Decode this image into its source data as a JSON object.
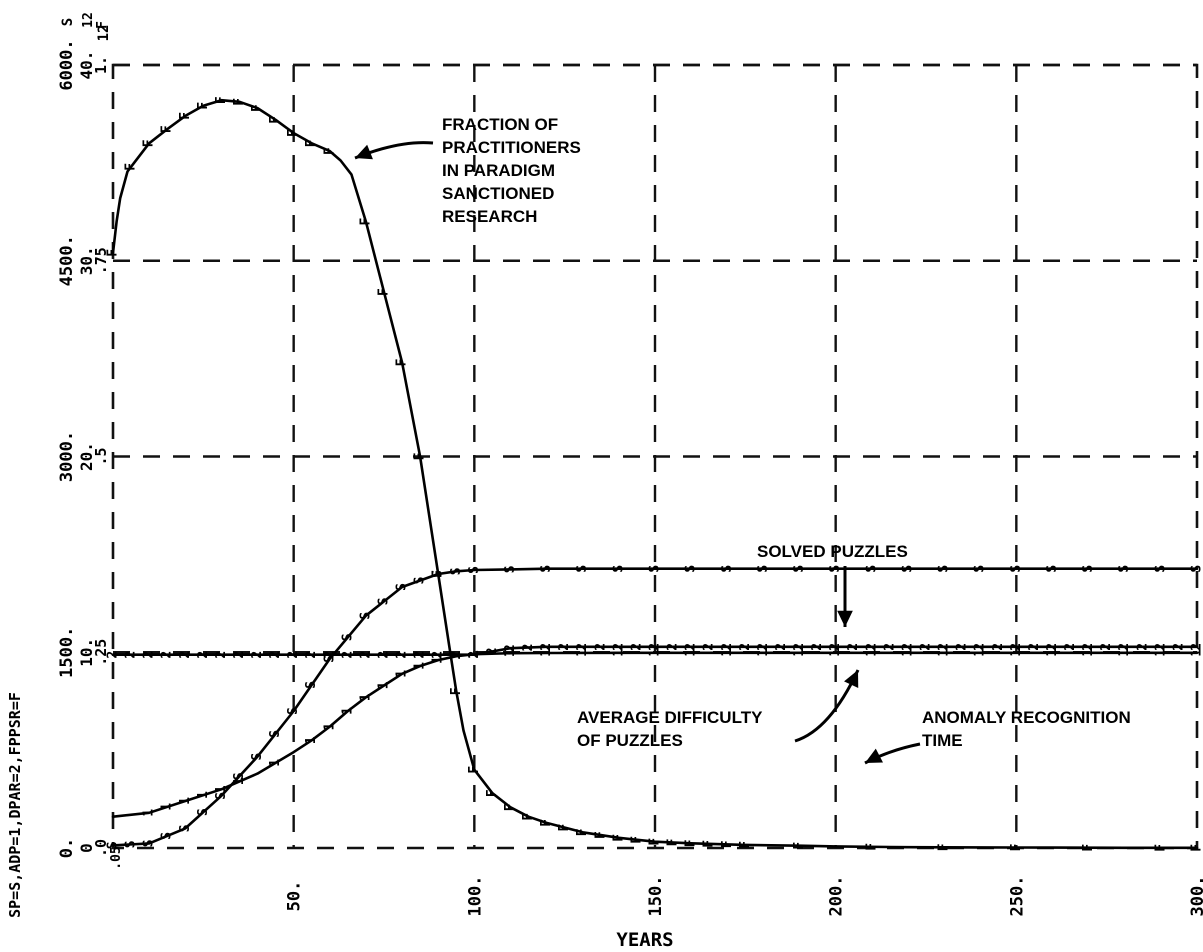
{
  "chart_data": {
    "type": "line",
    "xlabel": "YEARS",
    "legend_text": "SP=S,ADP=1,DPAR=2,FPPSR=F",
    "x_ticks": [
      "50.",
      "100.",
      "150.",
      "200.",
      "250.",
      "300."
    ],
    "x_range": [
      0,
      300
    ],
    "y_scales": [
      {
        "name": "SP",
        "ticks": [
          "0.",
          "1500.",
          "3000.",
          "4500.",
          "6000."
        ],
        "min": 0,
        "max": 6000
      },
      {
        "name": "ADP",
        "ticks": [
          "0",
          "10.",
          "20.",
          "30.",
          "40."
        ],
        "min": 0,
        "max": 40
      },
      {
        "name": "FPPSR",
        "ticks": [
          ".0",
          ".25",
          ".5",
          ".75",
          "1."
        ],
        "min": 0,
        "max": 1
      },
      {
        "name": "DPAR",
        "ticks": [
          ".05",
          "12"
        ],
        "min": 0.05,
        "max": 12
      }
    ],
    "axis_top_label": "S\n12\nF",
    "series": [
      {
        "name": "FPPSR",
        "symbol": "F",
        "x": [
          0,
          1,
          2,
          4,
          6,
          10,
          15,
          20,
          25,
          30,
          35,
          40,
          45,
          50,
          55,
          60,
          63,
          66,
          70,
          75,
          80,
          85,
          90,
          93,
          95,
          97,
          100,
          105,
          110,
          115,
          120,
          130,
          140,
          150,
          160,
          175,
          190,
          200,
          220,
          240,
          260,
          280,
          300
        ],
        "y": [
          0.76,
          0.8,
          0.83,
          0.864,
          0.876,
          0.9,
          0.918,
          0.935,
          0.948,
          0.955,
          0.953,
          0.945,
          0.93,
          0.913,
          0.9,
          0.89,
          0.878,
          0.86,
          0.8,
          0.71,
          0.62,
          0.5,
          0.35,
          0.26,
          0.2,
          0.15,
          0.1,
          0.07,
          0.052,
          0.04,
          0.032,
          0.02,
          0.013,
          0.008,
          0.006,
          0.004,
          0.003,
          0.002,
          0.001,
          0.0008,
          0.0005,
          0.0003,
          0.0002
        ],
        "markers_x": [
          0,
          5,
          10,
          15,
          20,
          25,
          30,
          35,
          40,
          45,
          50,
          55,
          60,
          70,
          75,
          80,
          85,
          90,
          95,
          100,
          105,
          110,
          115,
          120,
          125,
          130,
          135,
          140,
          145,
          150,
          155,
          160,
          165,
          170,
          175,
          190,
          210,
          230,
          250,
          270,
          290,
          300
        ]
      },
      {
        "name": "SP",
        "symbol": "S",
        "x": [
          0,
          10,
          20,
          30,
          40,
          50,
          60,
          70,
          80,
          90,
          95,
          100,
          110,
          120,
          150,
          200,
          300
        ],
        "y": [
          20,
          35,
          150,
          400,
          700,
          1050,
          1450,
          1780,
          2000,
          2100,
          2120,
          2130,
          2135,
          2140,
          2140,
          2140,
          2140
        ],
        "markers_x": [
          0,
          5,
          10,
          15,
          20,
          25,
          30,
          35,
          40,
          45,
          50,
          55,
          60,
          65,
          70,
          75,
          80,
          85,
          90,
          95,
          100,
          110,
          120,
          130,
          140,
          150,
          160,
          170,
          180,
          190,
          200,
          210,
          220,
          230,
          240,
          250,
          260,
          270,
          280,
          290,
          300
        ]
      },
      {
        "name": "ADP",
        "symbol": "1",
        "x": [
          0,
          10,
          20,
          30,
          40,
          50,
          55,
          60,
          65,
          70,
          75,
          80,
          85,
          90,
          95,
          100,
          110,
          120,
          150,
          200,
          300
        ],
        "y": [
          1.6,
          1.8,
          2.4,
          3.0,
          3.8,
          4.9,
          5.5,
          6.2,
          7.0,
          7.7,
          8.3,
          8.9,
          9.3,
          9.6,
          9.8,
          9.9,
          9.95,
          9.96,
          9.97,
          9.97,
          9.97
        ],
        "markers_x": [
          10,
          15,
          20,
          25,
          30,
          35,
          45,
          55,
          60,
          65,
          70,
          75,
          80,
          85,
          90,
          95,
          100,
          110,
          120,
          130,
          140,
          150,
          160,
          170,
          180,
          190,
          200,
          210,
          220,
          230,
          240,
          250,
          260,
          270,
          280,
          290,
          300
        ]
      },
      {
        "name": "DPAR",
        "symbol": "2",
        "x": [
          0,
          100,
          110,
          120,
          150,
          200,
          300
        ],
        "y": [
          3.0,
          3.0,
          3.1,
          3.12,
          3.12,
          3.12,
          3.12
        ],
        "markers_x": [
          0,
          5,
          10,
          15,
          20,
          25,
          30,
          35,
          40,
          45,
          50,
          55,
          60,
          65,
          70,
          75,
          80,
          85,
          90,
          95,
          100,
          105,
          110,
          115,
          120,
          125,
          130,
          135,
          140,
          145,
          150,
          155,
          160,
          165,
          170,
          175,
          180,
          185,
          190,
          195,
          200,
          205,
          210,
          215,
          220,
          225,
          230,
          235,
          240,
          245,
          250,
          255,
          260,
          265,
          270,
          275,
          280,
          285,
          290,
          295,
          300
        ]
      }
    ],
    "annotations": [
      {
        "text": [
          "FRACTION OF",
          "PRACTITIONERS",
          "IN PARADIGM",
          "SANCTIONED",
          "RESEARCH"
        ],
        "points_to": "FPPSR",
        "at_x": 62
      },
      {
        "text": [
          "SOLVED PUZZLES"
        ],
        "points_to": "SP",
        "at_x": 200
      },
      {
        "text": [
          "AVERAGE DIFFICULTY",
          "OF PUZZLES"
        ],
        "points_to": "ADP",
        "at_x": 200
      },
      {
        "text": [
          "ANOMALY RECOGNITION",
          "TIME"
        ],
        "points_to": "DPAR",
        "at_x": 200
      }
    ]
  }
}
